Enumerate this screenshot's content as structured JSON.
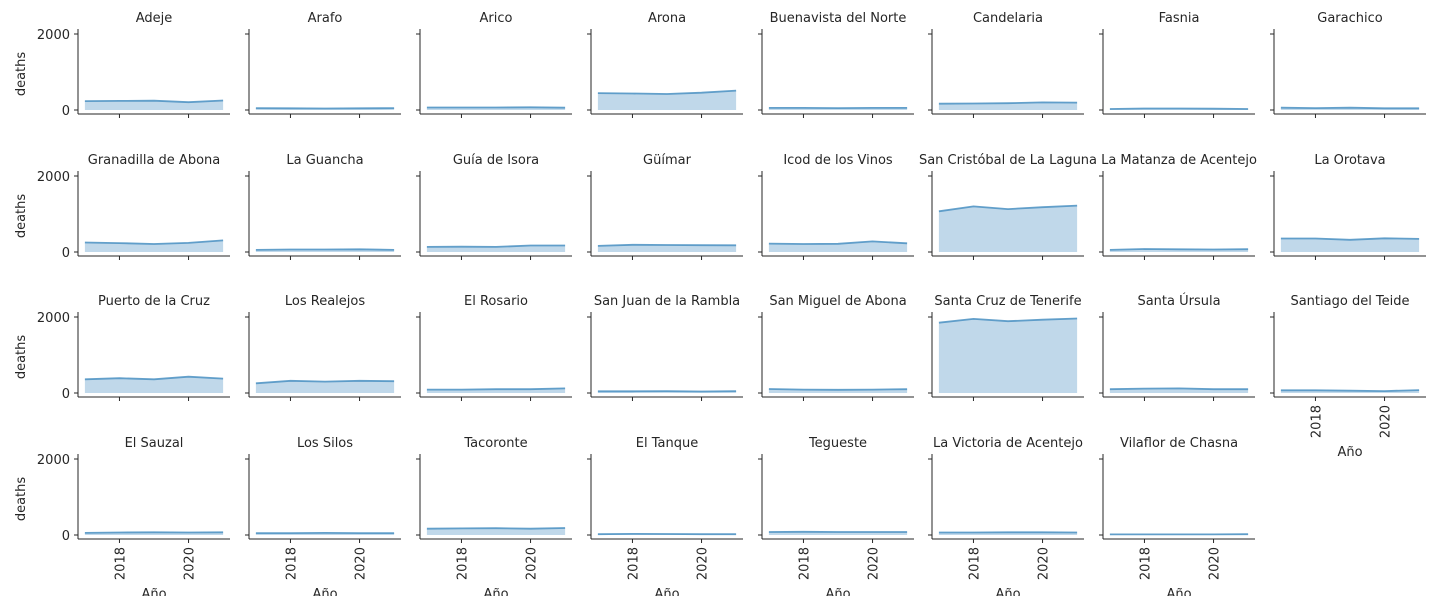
{
  "chart_data": {
    "type": "area",
    "x": [
      2017,
      2018,
      2019,
      2020,
      2021
    ],
    "xlabel": "Año",
    "ylabel": "deaths",
    "xticks": [
      "2018",
      "2020"
    ],
    "yticks": [
      "0",
      "2000"
    ],
    "ylim": [
      0,
      2000
    ],
    "xlim": [
      2016.8,
      2021.2
    ],
    "grid": false,
    "color": "#4a90c2",
    "series": [
      {
        "name": "Adeje",
        "values": [
          235,
          240,
          245,
          205,
          250
        ]
      },
      {
        "name": "Arafo",
        "values": [
          50,
          45,
          40,
          45,
          50
        ]
      },
      {
        "name": "Arico",
        "values": [
          65,
          65,
          65,
          70,
          60
        ]
      },
      {
        "name": "Arona",
        "values": [
          445,
          435,
          420,
          455,
          510
        ]
      },
      {
        "name": "Buenavista del Norte",
        "values": [
          55,
          55,
          50,
          55,
          55
        ]
      },
      {
        "name": "Candelaria",
        "values": [
          165,
          170,
          180,
          200,
          195
        ]
      },
      {
        "name": "Fasnia",
        "values": [
          25,
          40,
          40,
          35,
          25
        ]
      },
      {
        "name": "Garachico",
        "values": [
          60,
          50,
          60,
          45,
          45
        ]
      },
      {
        "name": "Granadilla de Abona",
        "values": [
          250,
          235,
          210,
          240,
          305
        ]
      },
      {
        "name": "La Guancha",
        "values": [
          55,
          65,
          65,
          70,
          55
        ]
      },
      {
        "name": "Guía de Isora",
        "values": [
          135,
          140,
          135,
          170,
          170
        ]
      },
      {
        "name": "Güímar",
        "values": [
          160,
          190,
          185,
          180,
          175
        ]
      },
      {
        "name": "Icod de los Vinos",
        "values": [
          220,
          210,
          215,
          280,
          230
        ]
      },
      {
        "name": "San Cristóbal de La Laguna",
        "values": [
          1070,
          1200,
          1130,
          1180,
          1220
        ]
      },
      {
        "name": "La Matanza de Acentejo",
        "values": [
          55,
          80,
          70,
          65,
          75
        ]
      },
      {
        "name": "La Orotava",
        "values": [
          355,
          355,
          320,
          360,
          345
        ]
      },
      {
        "name": "Puerto de la Cruz",
        "values": [
          360,
          390,
          360,
          430,
          380
        ]
      },
      {
        "name": "Los Realejos",
        "values": [
          255,
          320,
          300,
          320,
          310
        ]
      },
      {
        "name": "El Rosario",
        "values": [
          90,
          90,
          100,
          100,
          120
        ]
      },
      {
        "name": "San Juan de la Rambla",
        "values": [
          45,
          45,
          50,
          40,
          50
        ]
      },
      {
        "name": "San Miguel de Abona",
        "values": [
          105,
          90,
          85,
          90,
          100
        ]
      },
      {
        "name": "Santa Cruz de Tenerife",
        "values": [
          1850,
          1950,
          1890,
          1930,
          1960
        ]
      },
      {
        "name": "Santa Úrsula",
        "values": [
          100,
          115,
          120,
          100,
          100
        ]
      },
      {
        "name": "Santiago del Teide",
        "values": [
          70,
          70,
          60,
          50,
          75
        ]
      },
      {
        "name": "El Sauzal",
        "values": [
          55,
          65,
          70,
          65,
          70
        ]
      },
      {
        "name": "Los Silos",
        "values": [
          50,
          50,
          55,
          50,
          50
        ]
      },
      {
        "name": "Tacoronte",
        "values": [
          165,
          175,
          180,
          165,
          185
        ]
      },
      {
        "name": "El Tanque",
        "values": [
          20,
          30,
          25,
          20,
          20
        ]
      },
      {
        "name": "Tegueste",
        "values": [
          80,
          85,
          80,
          80,
          80
        ]
      },
      {
        "name": "La Victoria de Acentejo",
        "values": [
          65,
          65,
          70,
          70,
          65
        ]
      },
      {
        "name": "Vilaflor de Chasna",
        "values": [
          15,
          15,
          15,
          15,
          20
        ]
      }
    ]
  }
}
